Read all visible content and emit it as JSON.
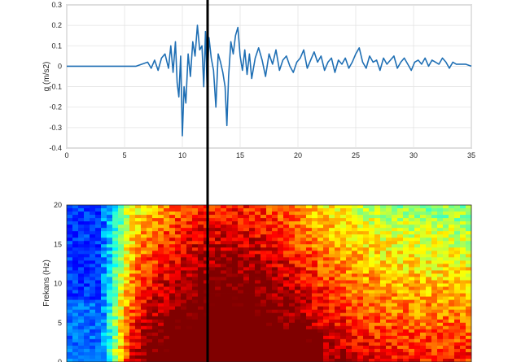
{
  "chart_data": [
    {
      "type": "line",
      "title": "",
      "xlabel": "",
      "ylabel": "g (m/s2)",
      "xlim": [
        0,
        35
      ],
      "ylim": [
        -0.4,
        0.3
      ],
      "xticks": [
        "0",
        "5",
        "10",
        "15",
        "20",
        "25",
        "30",
        "35"
      ],
      "yticks": [
        "0.3",
        "0.2",
        "0.1",
        "0",
        "-0.1",
        "-0.2",
        "-0.3",
        "-0.4"
      ],
      "grid": true,
      "line_color": "#1f6fb4",
      "series": [
        {
          "x": [
            0,
            1,
            2,
            3,
            4,
            5,
            6,
            6.5,
            7,
            7.3,
            7.6,
            7.9,
            8.2,
            8.5,
            8.8,
            9.0,
            9.2,
            9.4,
            9.55,
            9.7,
            9.85,
            10.0,
            10.15,
            10.3,
            10.5,
            10.7,
            10.9,
            11.1,
            11.3,
            11.5,
            11.7,
            11.85,
            12.0,
            12.15,
            12.3,
            12.5,
            12.7,
            12.9,
            13.1,
            13.3,
            13.5,
            13.7,
            13.85,
            14.0,
            14.2,
            14.4,
            14.6,
            14.8,
            15.0,
            15.2,
            15.4,
            15.6,
            15.8,
            16.0,
            16.3,
            16.6,
            16.9,
            17.2,
            17.5,
            17.8,
            18.1,
            18.4,
            18.7,
            19.0,
            19.3,
            19.6,
            19.9,
            20.2,
            20.5,
            20.8,
            21.1,
            21.4,
            21.7,
            22.0,
            22.3,
            22.6,
            22.9,
            23.2,
            23.5,
            23.8,
            24.1,
            24.4,
            24.7,
            25.0,
            25.3,
            25.6,
            25.9,
            26.2,
            26.5,
            26.8,
            27.1,
            27.4,
            27.7,
            28.0,
            28.3,
            28.6,
            28.9,
            29.2,
            29.5,
            29.8,
            30.1,
            30.4,
            30.7,
            31.0,
            31.3,
            31.6,
            31.9,
            32.2,
            32.5,
            32.8,
            33.1,
            33.4,
            33.7,
            34.0,
            34.5,
            35.0
          ],
          "y": [
            0,
            0,
            0,
            0,
            0,
            0,
            0,
            0.01,
            0.02,
            -0.01,
            0.03,
            -0.02,
            0.04,
            0.06,
            -0.01,
            0.1,
            -0.03,
            0.12,
            -0.08,
            -0.15,
            0.05,
            -0.34,
            -0.1,
            -0.18,
            0.06,
            -0.05,
            0.12,
            0.05,
            0.2,
            0.08,
            0.1,
            -0.1,
            0.17,
            -0.12,
            0.14,
            0.04,
            -0.02,
            -0.2,
            0.06,
            0.02,
            -0.03,
            -0.1,
            -0.29,
            -0.05,
            0.12,
            0.06,
            0.15,
            0.19,
            0.05,
            -0.02,
            0.08,
            -0.04,
            0.06,
            -0.06,
            0.04,
            0.09,
            0.03,
            -0.05,
            0.06,
            0.01,
            0.08,
            -0.02,
            0.03,
            0.05,
            0,
            -0.03,
            0.02,
            0.04,
            0.08,
            -0.01,
            0.03,
            0.07,
            0.02,
            0.05,
            -0.02,
            0.02,
            0.04,
            -0.03,
            0.03,
            0.01,
            0.04,
            -0.01,
            0.02,
            0.06,
            0.09,
            0.02,
            -0.01,
            0.05,
            0.02,
            0.03,
            -0.02,
            0.04,
            0.01,
            0.03,
            0.05,
            -0.01,
            0.02,
            0.04,
            0.01,
            -0.02,
            0.02,
            0.03,
            0.01,
            0.04,
            0,
            0.03,
            0.02,
            0.01,
            0.04,
            0.02,
            -0.01,
            0.02,
            0.01,
            0.01,
            0.01,
            0
          ]
        }
      ]
    },
    {
      "type": "heatmap",
      "title": "",
      "xlabel": "",
      "ylabel": "Frekans (Hz)",
      "xlim": [
        0,
        35
      ],
      "ylim": [
        0,
        20
      ],
      "yticks": [
        "20",
        "15",
        "10",
        "5",
        "0"
      ],
      "grid": false,
      "colormap": "jet"
    }
  ]
}
